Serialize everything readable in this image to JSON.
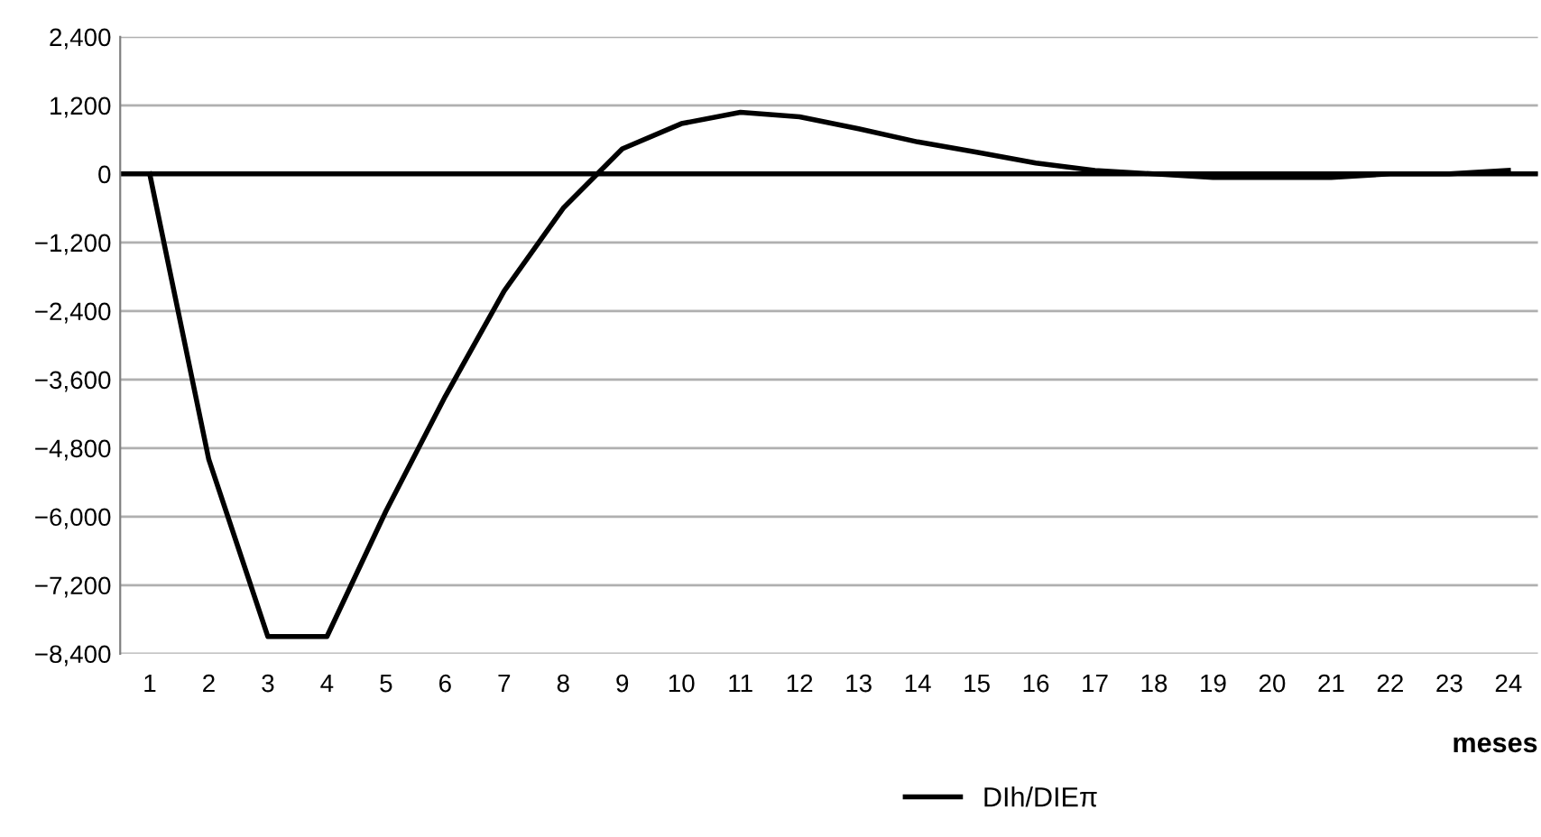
{
  "chart_data": {
    "type": "line",
    "xlabel": "meses",
    "categories": [
      "1",
      "2",
      "3",
      "4",
      "5",
      "6",
      "7",
      "8",
      "9",
      "10",
      "11",
      "12",
      "13",
      "14",
      "15",
      "16",
      "17",
      "18",
      "19",
      "20",
      "21",
      "22",
      "23",
      "24"
    ],
    "series": [
      {
        "name": "DIh/DIEπ",
        "color": "#000000",
        "values": [
          0,
          -5000,
          -8100,
          -8100,
          -5900,
          -3900,
          -2050,
          -600,
          440,
          880,
          1080,
          1000,
          790,
          560,
          380,
          190,
          60,
          0,
          -60,
          -60,
          -60,
          0,
          0,
          60
        ]
      }
    ],
    "ylim": [
      -8400,
      2400
    ],
    "yticks": [
      {
        "value": -8400,
        "label": "−8,400"
      },
      {
        "value": -7200,
        "label": "−7,200"
      },
      {
        "value": -6000,
        "label": "−6,000"
      },
      {
        "value": -4800,
        "label": "−4,800"
      },
      {
        "value": -3600,
        "label": "−3,600"
      },
      {
        "value": -2400,
        "label": "−2,400"
      },
      {
        "value": -1200,
        "label": "−1,200"
      },
      0,
      {
        "value": 1200,
        "label": "1,200"
      },
      {
        "value": 2400,
        "label": "2,400"
      }
    ],
    "ref_lines": [
      {
        "axis": "y",
        "value": 0,
        "color": "#000000"
      }
    ],
    "grid": "y",
    "legend": "bottom",
    "marker": "none",
    "line_style": "solid"
  }
}
